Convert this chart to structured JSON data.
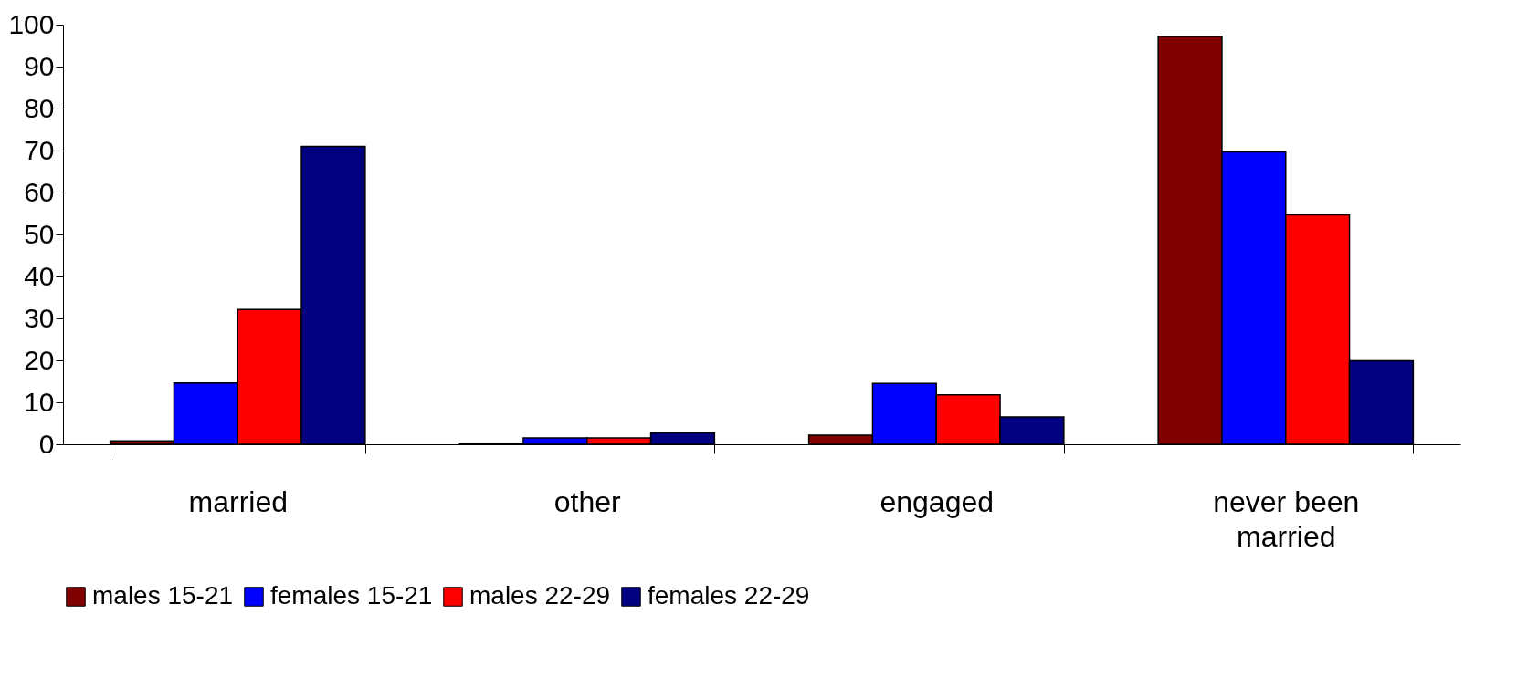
{
  "chart_data": {
    "type": "bar",
    "categories": [
      "married",
      "other",
      "engaged",
      "never been married"
    ],
    "series": [
      {
        "name": "males 15-21",
        "color": "#800000",
        "values": [
          0.8,
          0.2,
          2.2,
          97.2
        ]
      },
      {
        "name": "females 15-21",
        "color": "#0000ff",
        "values": [
          14.6,
          1.5,
          14.5,
          69.7
        ]
      },
      {
        "name": "males 22-29",
        "color": "#ff0000",
        "values": [
          32.1,
          1.5,
          11.8,
          54.7
        ]
      },
      {
        "name": "females 22-29",
        "color": "#000080",
        "values": [
          71.0,
          2.7,
          6.5,
          19.9
        ]
      }
    ],
    "ylim": [
      0,
      100
    ],
    "yticks": [
      0,
      10,
      20,
      30,
      40,
      50,
      60,
      70,
      80,
      90,
      100
    ],
    "grid": false,
    "legend": "bottom"
  }
}
